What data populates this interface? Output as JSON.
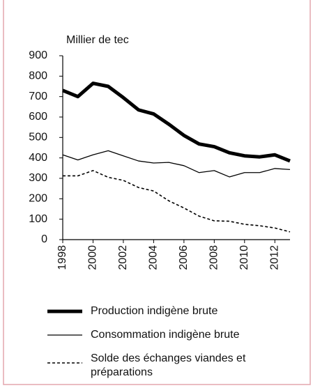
{
  "chart_data": {
    "type": "line",
    "y_axis_label": "Millier de tec",
    "x": [
      1998,
      1999,
      2000,
      2001,
      2002,
      2003,
      2004,
      2005,
      2006,
      2007,
      2008,
      2009,
      2010,
      2011,
      2012,
      2013
    ],
    "series": [
      {
        "name": "Production indigène brute",
        "color": "#000000",
        "width": 5,
        "dash": "none",
        "values": [
          730,
          700,
          765,
          750,
          695,
          635,
          615,
          565,
          510,
          468,
          455,
          425,
          410,
          405,
          415,
          385
        ]
      },
      {
        "name": "Consommation indigène brute",
        "color": "#000000",
        "width": 1.3,
        "dash": "none",
        "values": [
          415,
          390,
          415,
          435,
          410,
          385,
          375,
          378,
          362,
          328,
          338,
          307,
          328,
          328,
          348,
          343
        ]
      },
      {
        "name": "Solde des échanges viandes et préparations",
        "color": "#000000",
        "width": 1.6,
        "dash": "4 3",
        "values": [
          312,
          312,
          338,
          305,
          290,
          255,
          238,
          190,
          155,
          115,
          92,
          90,
          75,
          68,
          57,
          38
        ]
      }
    ],
    "xlim": [
      1998,
      2013
    ],
    "xticks": [
      1998,
      2000,
      2002,
      2004,
      2006,
      2008,
      2010,
      2012
    ],
    "ylim": [
      0,
      900
    ],
    "yticks": [
      0,
      100,
      200,
      300,
      400,
      500,
      600,
      700,
      800,
      900
    ],
    "grid": false
  }
}
